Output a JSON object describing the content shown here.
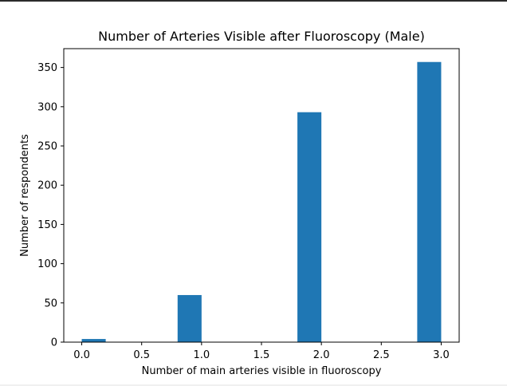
{
  "chart_data": {
    "type": "bar",
    "title": "Number of Arteries Visible after Fluoroscopy (Male)",
    "xlabel": "Number of main arteries visible in fluoroscopy",
    "ylabel": "Number of respondents",
    "xlim": [
      -0.15,
      3.15
    ],
    "ylim": [
      0,
      374
    ],
    "bar_width": 0.2,
    "bars": [
      {
        "x": 0.0,
        "value": 4
      },
      {
        "x": 0.8,
        "value": 60
      },
      {
        "x": 1.8,
        "value": 293
      },
      {
        "x": 2.8,
        "value": 357
      }
    ],
    "x_ticks": [
      "0.0",
      "0.5",
      "1.0",
      "1.5",
      "2.0",
      "2.5",
      "3.0"
    ],
    "x_tick_values": [
      0,
      0.5,
      1.0,
      1.5,
      2.0,
      2.5,
      3.0
    ],
    "y_ticks": [
      "0",
      "50",
      "100",
      "150",
      "200",
      "250",
      "300",
      "350"
    ],
    "y_tick_values": [
      0,
      50,
      100,
      150,
      200,
      250,
      300,
      350
    ],
    "bar_color": "#1f77b4",
    "grid": false,
    "legend": "none"
  }
}
